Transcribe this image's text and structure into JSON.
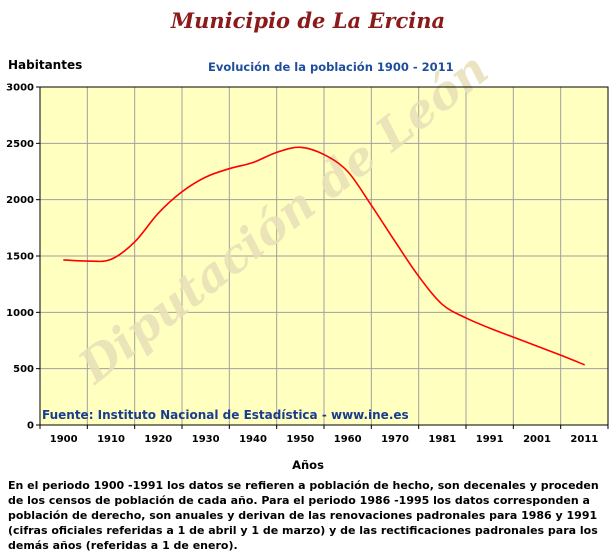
{
  "title": "Municipio de La Ercina",
  "chart_data": {
    "type": "line",
    "title": "Evolución de la población 1900 - 2011",
    "ylabel": "Habitantes",
    "xlabel": "Años",
    "ylim": [
      0,
      3000
    ],
    "yticks": [
      0,
      500,
      1000,
      1500,
      2000,
      2500,
      3000
    ],
    "x_tick_labels": [
      "1900",
      "1910",
      "1920",
      "1930",
      "1940",
      "1950",
      "1960",
      "1970",
      "1981",
      "1991",
      "2001",
      "2011"
    ],
    "grid": true,
    "colors": {
      "plot_bg": "#ffffc0",
      "line": "#ff0000",
      "grid": "#a0a0a0"
    },
    "series": [
      {
        "x_index": [
          0,
          0.5,
          1,
          1.5,
          2,
          2.5,
          3,
          3.5,
          4,
          4.5,
          5,
          5.5,
          6,
          6.5,
          7,
          7.5,
          8,
          8.5,
          9,
          9.5,
          10,
          10.5,
          11
        ],
        "values": [
          1465,
          1455,
          1470,
          1625,
          1880,
          2070,
          2200,
          2275,
          2330,
          2420,
          2465,
          2400,
          2250,
          1950,
          1630,
          1320,
          1070,
          950,
          860,
          780,
          700,
          620,
          535
        ]
      }
    ]
  },
  "watermark": "Diputación de León",
  "source": "Fuente: Instituto Nacional de Estadística - www.ine.es",
  "footnote": "En el periodo 1900 -1991 los datos se refieren a población de hecho, son decenales y proceden de los censos de población de cada año. Para el periodo 1986 -1995 los datos corresponden a población de derecho, son anuales y derivan de las renovaciones padronales para 1986 y 1991 (cifras oficiales referidas a 1 de abril y 1 de marzo) y de las rectificaciones padronales para los demás años (referidas a 1 de enero)."
}
